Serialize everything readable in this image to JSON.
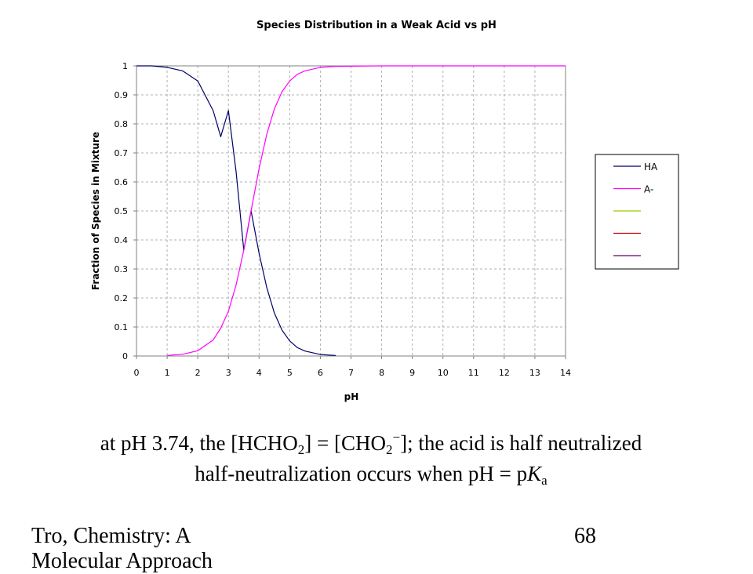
{
  "chart_data": {
    "type": "line",
    "title": "Species Distribution in a Weak Acid vs pH",
    "xlabel": "pH",
    "ylabel": "Fraction of Species in Mixture",
    "xlim": [
      0,
      14
    ],
    "ylim": [
      0,
      1
    ],
    "x_ticks": [
      "0",
      "1",
      "2",
      "3",
      "4",
      "5",
      "6",
      "7",
      "8",
      "9",
      "10",
      "11",
      "12",
      "13",
      "14"
    ],
    "y_ticks": [
      "0",
      "0.1",
      "0.2",
      "0.3",
      "0.4",
      "0.5",
      "0.6",
      "0.7",
      "0.8",
      "0.9",
      "1"
    ],
    "grid": true,
    "legend_position": "right",
    "x": [
      1,
      1.5,
      2,
      2.5,
      2.75,
      3,
      3.25,
      3.5,
      3.74,
      4,
      4.25,
      4.5,
      4.75,
      5,
      5.25,
      5.5,
      6,
      6.5,
      7,
      8,
      9,
      10,
      11,
      12,
      13,
      14
    ],
    "series": [
      {
        "name": "HA",
        "color": "#000066",
        "x": [
          0,
          0.5,
          1,
          1.5,
          2,
          2.5,
          2.75,
          3,
          3.25,
          3.5,
          3.74,
          4,
          4.25,
          4.5,
          4.75,
          5,
          5.25,
          5.5,
          6,
          6.5
        ],
        "values": [
          1.0,
          1.0,
          0.995,
          0.983,
          0.948,
          0.846,
          0.756,
          0.846,
          0.635,
          0.365,
          0.5,
          0.354,
          0.236,
          0.148,
          0.089,
          0.052,
          0.029,
          0.017,
          0.005,
          0.002
        ]
      },
      {
        "name": "A-",
        "color": "#ff00ff",
        "x": [
          1,
          1.5,
          2,
          2.5,
          2.75,
          3,
          3.25,
          3.5,
          3.74,
          4,
          4.25,
          4.5,
          4.75,
          5,
          5.25,
          5.5,
          6,
          6.5,
          7,
          8,
          9,
          10,
          11,
          12,
          13,
          14
        ],
        "values": [
          0.002,
          0.006,
          0.018,
          0.055,
          0.096,
          0.154,
          0.245,
          0.365,
          0.5,
          0.646,
          0.764,
          0.852,
          0.911,
          0.948,
          0.971,
          0.983,
          0.995,
          0.998,
          0.999,
          1.0,
          1.0,
          1.0,
          1.0,
          1.0,
          1.0,
          1.0
        ]
      },
      {
        "name": "",
        "color": "#99cc00",
        "x": [],
        "values": []
      },
      {
        "name": "",
        "color": "#cc0000",
        "x": [],
        "values": []
      },
      {
        "name": "",
        "color": "#660066",
        "x": [],
        "values": []
      }
    ]
  },
  "caption": {
    "line1": {
      "part1": "at pH 3.74, the [HCHO",
      "sub1": "2",
      "part2": "] = [CHO",
      "sub2": "2",
      "sup2": "−",
      "part3": "]; the acid is half neutralized"
    },
    "line2": {
      "part1": "half-neutralization occurs when pH = p",
      "italic": "K",
      "sub": "a"
    }
  },
  "footer": {
    "left": "Tro, Chemistry: A Molecular Approach",
    "right": "68"
  }
}
